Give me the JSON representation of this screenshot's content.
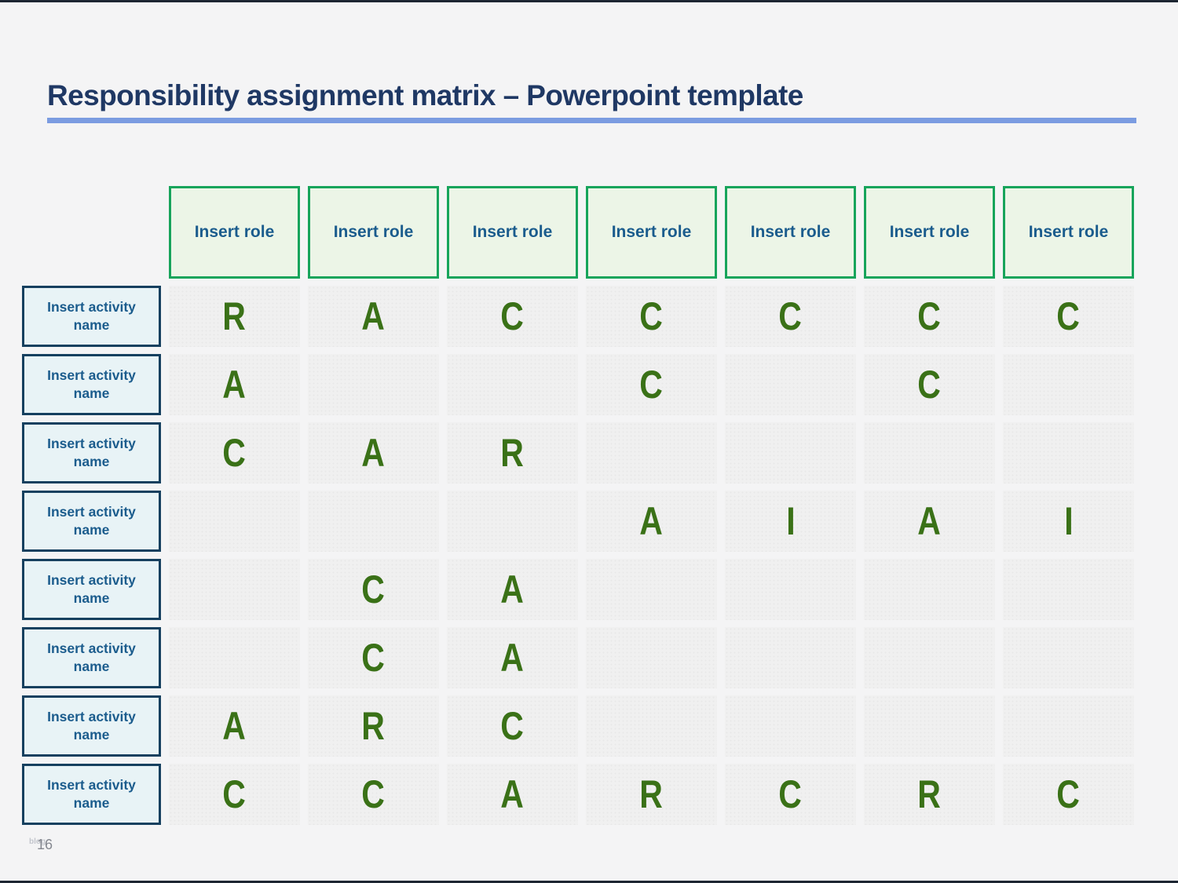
{
  "page": {
    "title": "Responsibility assignment matrix – Powerpoint template",
    "page_number": "16",
    "watermark": "blog"
  },
  "matrix": {
    "roles": [
      "Insert role",
      "Insert role",
      "Insert role",
      "Insert role",
      "Insert role",
      "Insert role",
      "Insert role"
    ],
    "rows": [
      {
        "activity": "Insert activity name",
        "cells": [
          "R",
          "A",
          "C",
          "C",
          "C",
          "C",
          "C"
        ]
      },
      {
        "activity": "Insert activity name",
        "cells": [
          "A",
          "",
          "",
          "C",
          "",
          "C",
          ""
        ]
      },
      {
        "activity": "Insert activity name",
        "cells": [
          "C",
          "A",
          "R",
          "",
          "",
          "",
          ""
        ]
      },
      {
        "activity": "Insert activity name",
        "cells": [
          "",
          "",
          "",
          "A",
          "I",
          "A",
          "I"
        ]
      },
      {
        "activity": "Insert activity name",
        "cells": [
          "",
          "C",
          "A",
          "",
          "",
          "",
          ""
        ]
      },
      {
        "activity": "Insert activity name",
        "cells": [
          "",
          "C",
          "A",
          "",
          "",
          "",
          ""
        ]
      },
      {
        "activity": "Insert activity name",
        "cells": [
          "A",
          "R",
          "C",
          "",
          "",
          "",
          ""
        ]
      },
      {
        "activity": "Insert activity name",
        "cells": [
          "C",
          "C",
          "A",
          "R",
          "C",
          "R",
          "C"
        ]
      }
    ]
  },
  "colors": {
    "title_text": "#1f3864",
    "title_rule": "#7b9ce1",
    "role_box_fill": "#ecf5e7",
    "role_box_border": "#17a45b",
    "activity_box_fill": "#e8f3f6",
    "activity_box_border": "#16405f",
    "box_label_text": "#1b5c8d",
    "cell_fill": "#f0f0f0",
    "raci_letter": "#3a7117",
    "edge_bar": "#1d2632",
    "background": "#f4f4f5"
  }
}
